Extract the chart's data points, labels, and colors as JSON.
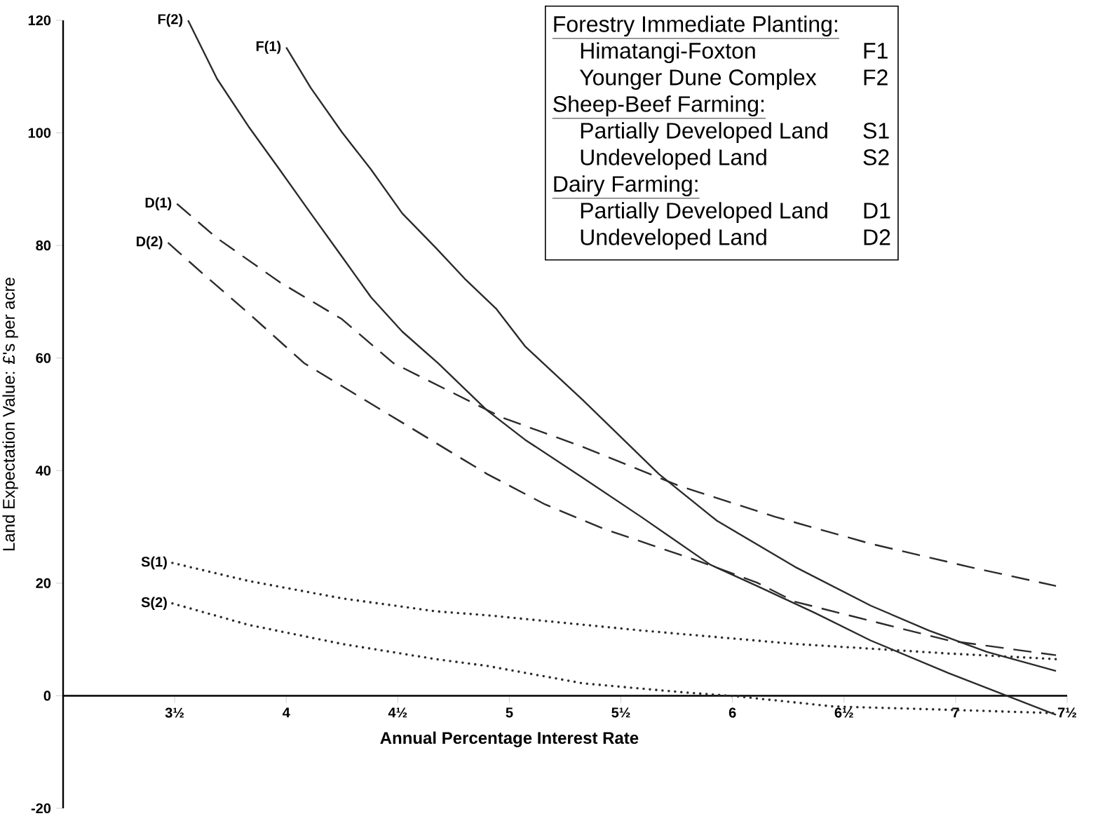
{
  "chart_data": {
    "type": "line",
    "xlabel": "Annual Percentage Interest Rate",
    "ylabel": "Land Expectation Value:  £'s per acre",
    "xlim": [
      3,
      7.5
    ],
    "ylim": [
      -20,
      120
    ],
    "xticks": [
      {
        "value": 3.5,
        "label": "3½"
      },
      4,
      {
        "value": 4.5,
        "label": "4½"
      },
      5,
      {
        "value": 5.5,
        "label": "5½"
      },
      6,
      {
        "value": 6.5,
        "label": "6½"
      },
      7,
      {
        "value": 7.5,
        "label": "7½"
      }
    ],
    "yticks": [
      -20,
      0,
      20,
      40,
      60,
      80,
      100,
      120
    ],
    "marker": "none",
    "series": [
      {
        "name": "F(2)",
        "color": "#2b2b2b",
        "line_style": "solid",
        "x": [
          3.56,
          3.69,
          3.83,
          3.97,
          4.11,
          4.25,
          4.38,
          4.52,
          4.68,
          4.9,
          5.07,
          5.33,
          5.59,
          5.9,
          6.11,
          6.37,
          6.62,
          6.97,
          7.21,
          7.45
        ],
        "values": [
          120,
          109.6,
          101.2,
          93.5,
          85.7,
          78.0,
          70.8,
          64.7,
          59.1,
          50.7,
          45.5,
          38.7,
          31.8,
          23.3,
          19.5,
          14.7,
          9.8,
          4.0,
          0.3,
          -3.4
        ]
      },
      {
        "name": "F(1)",
        "color": "#2b2b2b",
        "line_style": "solid",
        "x": [
          4.0,
          4.11,
          4.25,
          4.38,
          4.52,
          4.67,
          4.8,
          4.94,
          5.07,
          5.33,
          5.67,
          5.93,
          6.28,
          6.62,
          6.88,
          7.14,
          7.45
        ],
        "values": [
          115.2,
          108.0,
          100.1,
          93.5,
          85.7,
          79.6,
          74.1,
          68.8,
          62.1,
          52.5,
          39.4,
          31.1,
          22.9,
          16.0,
          11.6,
          7.8,
          4.4
        ]
      },
      {
        "name": "D(1)",
        "color": "#2b2b2b",
        "line_style": "dashed",
        "x": [
          3.51,
          3.69,
          3.97,
          4.25,
          4.48,
          4.97,
          5.33,
          5.76,
          6.19,
          6.62,
          7.06,
          7.45
        ],
        "values": [
          87.4,
          81.3,
          73.5,
          66.9,
          59.1,
          49.4,
          44.2,
          37.3,
          31.8,
          27.0,
          22.9,
          19.5
        ]
      },
      {
        "name": "D(2)",
        "color": "#2b2b2b",
        "line_style": "dashed",
        "x": [
          3.47,
          3.62,
          3.83,
          4.08,
          4.9,
          5.16,
          5.42,
          5.85,
          6.11,
          6.28,
          6.62,
          6.97,
          7.45
        ],
        "values": [
          80.5,
          75.2,
          68.0,
          59.1,
          39.4,
          34.0,
          29.7,
          23.9,
          20.1,
          16.7,
          13.3,
          9.8,
          7.2
        ]
      },
      {
        "name": "S(1)",
        "color": "#2b2b2b",
        "line_style": "dotted",
        "x": [
          3.49,
          3.83,
          4.25,
          4.67,
          4.9,
          5.59,
          6.28,
          6.97,
          7.45
        ],
        "values": [
          23.6,
          20.4,
          17.3,
          15.0,
          14.3,
          11.6,
          9.2,
          7.5,
          6.5
        ]
      },
      {
        "name": "S(2)",
        "color": "#2b2b2b",
        "line_style": "dotted",
        "x": [
          3.49,
          3.83,
          4.25,
          4.67,
          4.9,
          5.33,
          5.78,
          6.02,
          6.45,
          6.97,
          7.45
        ],
        "values": [
          16.4,
          12.6,
          9.2,
          6.5,
          5.3,
          2.2,
          0.6,
          -0.1,
          -1.9,
          -2.5,
          -3.1
        ]
      }
    ],
    "annotations": [
      "Forestry Immediate Planting:",
      "Himatangi-Foxton",
      "F1",
      "Younger Dune Complex",
      "F2",
      "Sheep-Beef Farming:",
      "Partially Developed Land",
      "S1",
      "Undeveloped Land",
      "S2",
      "Dairy Farming:",
      "Partially Developed Land",
      "D1",
      "Undeveloped Land",
      "D2"
    ]
  }
}
